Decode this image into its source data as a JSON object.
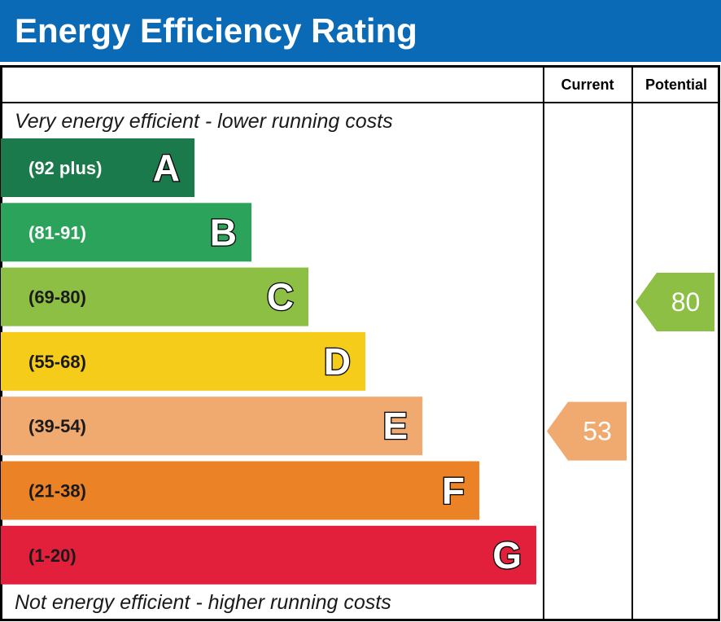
{
  "title": "Energy Efficiency Rating",
  "columns": {
    "current": "Current",
    "potential": "Potential"
  },
  "captions": {
    "top": "Very energy efficient - lower running costs",
    "bottom": "Not energy efficient - higher running costs"
  },
  "chart_data": {
    "type": "bar",
    "title": "Energy Efficiency Rating",
    "bands": [
      {
        "letter": "A",
        "range": "(92 plus)",
        "color": "#1a7a4c",
        "range_text_color": "#ffffff"
      },
      {
        "letter": "B",
        "range": "(81-91)",
        "color": "#2ca35a",
        "range_text_color": "#ffffff"
      },
      {
        "letter": "C",
        "range": "(69-80)",
        "color": "#8cbf44",
        "range_text_color": "#1a1a1a"
      },
      {
        "letter": "D",
        "range": "(55-68)",
        "color": "#f5cc1a",
        "range_text_color": "#1a1a1a"
      },
      {
        "letter": "E",
        "range": "(39-54)",
        "color": "#f0a96e",
        "range_text_color": "#1a1a1a"
      },
      {
        "letter": "F",
        "range": "(21-38)",
        "color": "#ec8226",
        "range_text_color": "#1a1a1a"
      },
      {
        "letter": "G",
        "range": "(1-20)",
        "color": "#e2203c",
        "range_text_color": "#1a1a1a"
      }
    ],
    "current": {
      "value": 53,
      "band": "E",
      "color": "#f0a96e"
    },
    "potential": {
      "value": 80,
      "band": "C",
      "color": "#8cbf44"
    }
  },
  "colors": {
    "header": "#0a6ab6",
    "border": "#000000"
  }
}
